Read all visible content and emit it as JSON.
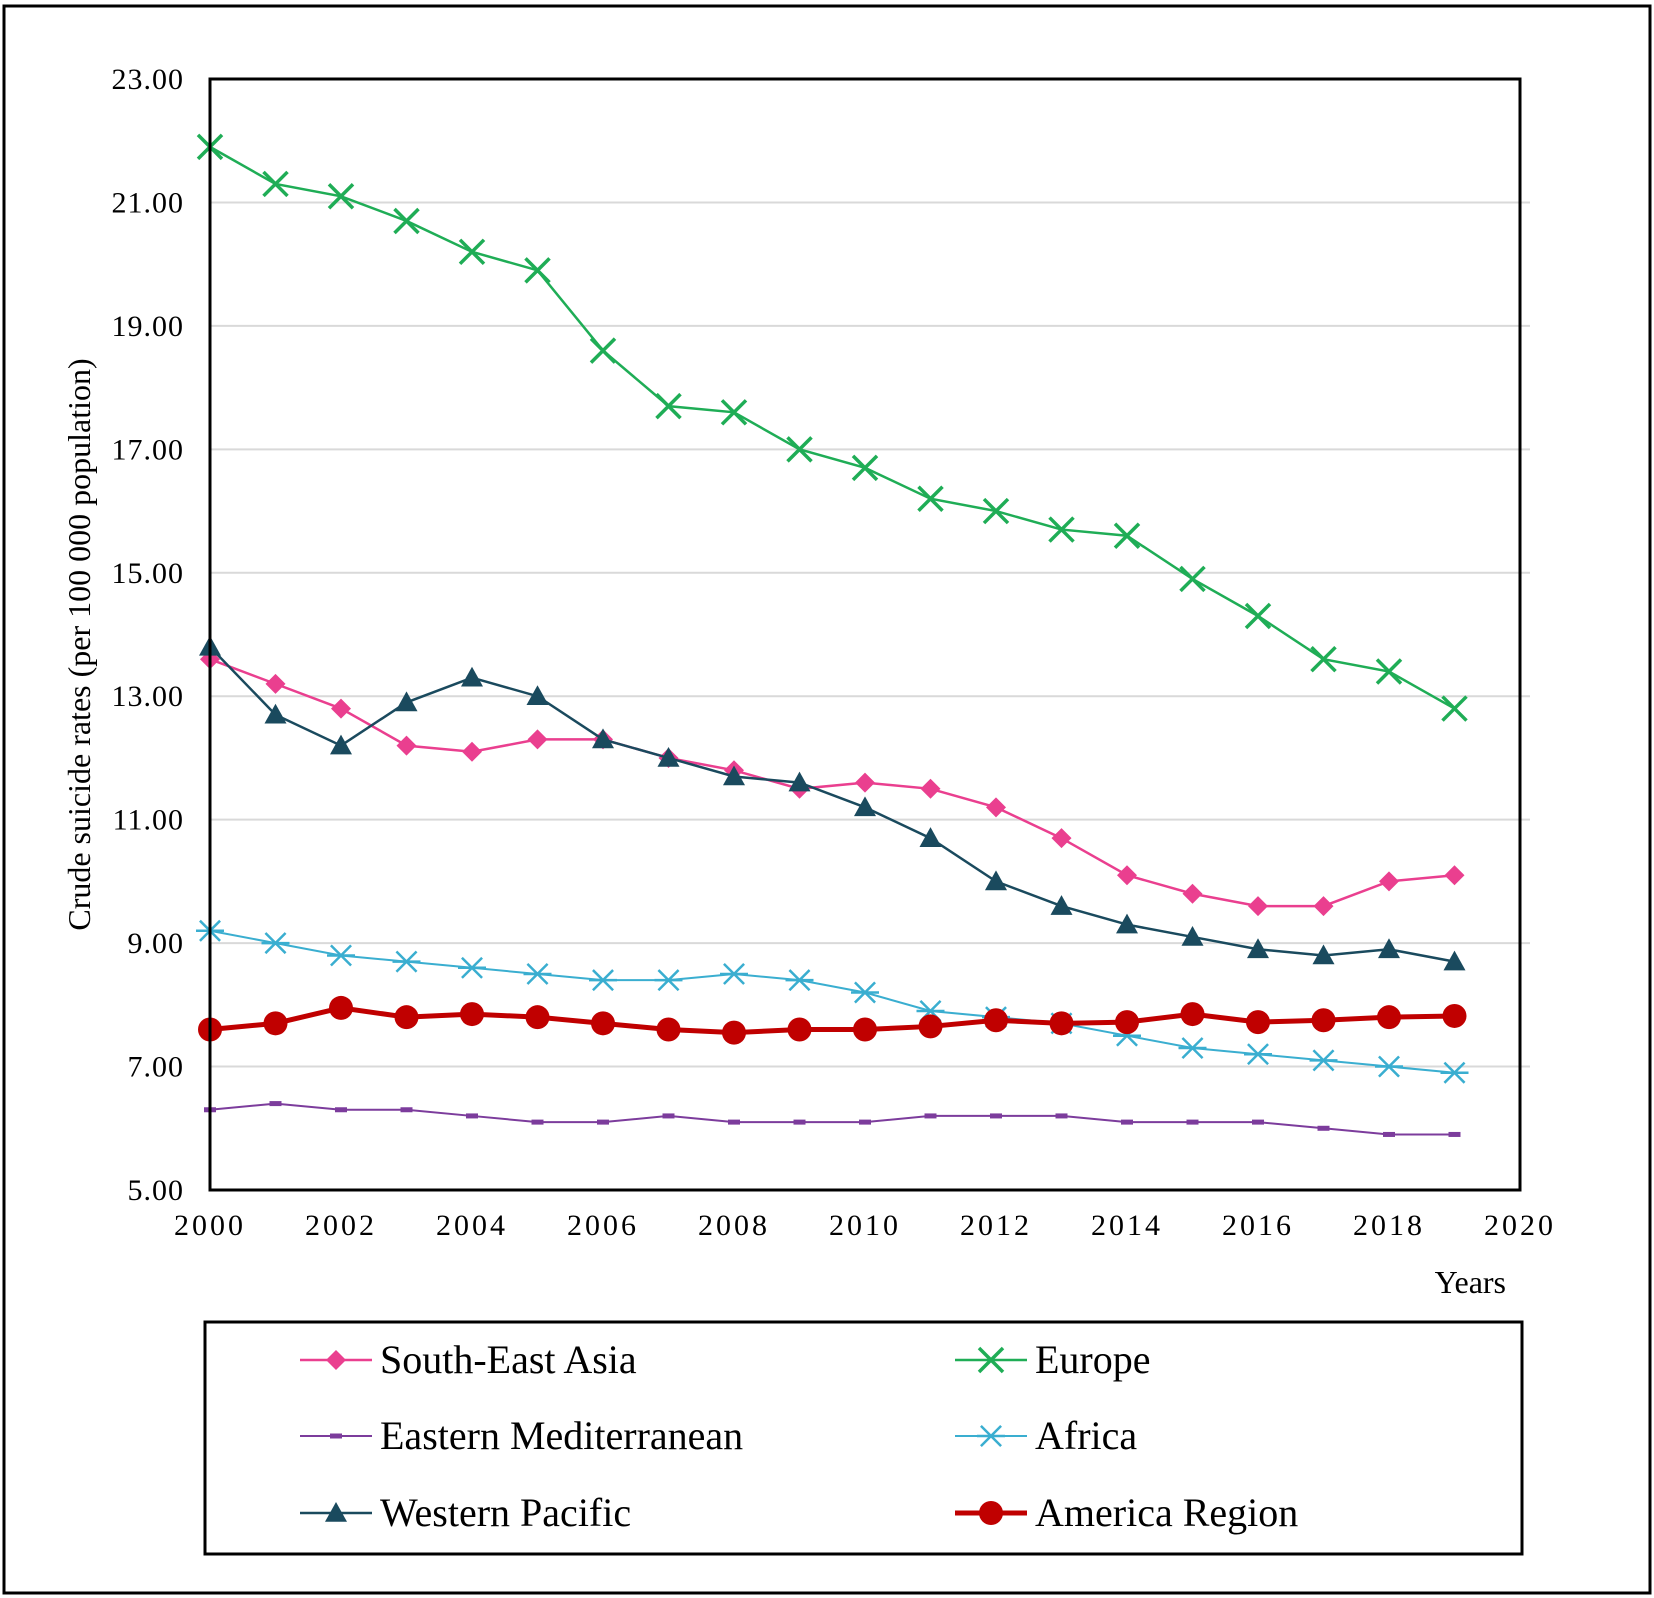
{
  "chart_data": {
    "type": "line",
    "ylabel": "Crude suicide rates (per 100 000 population)",
    "xlabel": "Years",
    "xlim": [
      2000,
      2020
    ],
    "ylim": [
      5.0,
      23.0
    ],
    "x_ticks": [
      "2000",
      "2002",
      "2004",
      "2006",
      "2008",
      "2010",
      "2012",
      "2014",
      "2016",
      "2018",
      "2020"
    ],
    "y_ticks": [
      "5.00",
      "7.00",
      "9.00",
      "11.00",
      "13.00",
      "15.00",
      "17.00",
      "19.00",
      "21.00",
      "23.00"
    ],
    "grid": "horizontal",
    "legend_position": "bottom",
    "x": [
      2000,
      2001,
      2002,
      2003,
      2004,
      2005,
      2006,
      2007,
      2008,
      2009,
      2010,
      2011,
      2012,
      2013,
      2014,
      2015,
      2016,
      2017,
      2018,
      2019
    ],
    "series": [
      {
        "name": "South-East Asia",
        "color": "#ea3f8f",
        "marker": "diamond",
        "values": [
          13.6,
          13.2,
          12.8,
          12.2,
          12.1,
          12.3,
          12.3,
          12.0,
          11.8,
          11.5,
          11.6,
          11.5,
          11.2,
          10.7,
          10.1,
          9.8,
          9.6,
          9.6,
          10.0,
          10.1
        ]
      },
      {
        "name": "Europe",
        "color": "#1fad56",
        "marker": "x",
        "values": [
          21.9,
          21.3,
          21.1,
          20.7,
          20.2,
          19.9,
          18.6,
          17.7,
          17.6,
          17.0,
          16.7,
          16.2,
          16.0,
          15.7,
          15.6,
          14.9,
          14.3,
          13.6,
          13.4,
          12.8
        ]
      },
      {
        "name": "Eastern Mediterranean",
        "color": "#7c3c9c",
        "marker": "dash",
        "values": [
          6.3,
          6.4,
          6.3,
          6.3,
          6.2,
          6.1,
          6.1,
          6.2,
          6.1,
          6.1,
          6.1,
          6.2,
          6.2,
          6.2,
          6.1,
          6.1,
          6.1,
          6.0,
          5.9,
          5.9
        ]
      },
      {
        "name": "Africa",
        "color": "#3aaed0",
        "marker": "asterisk",
        "values": [
          9.2,
          9.0,
          8.8,
          8.7,
          8.6,
          8.5,
          8.4,
          8.4,
          8.5,
          8.4,
          8.2,
          7.9,
          7.8,
          7.7,
          7.5,
          7.3,
          7.2,
          7.1,
          7.0,
          6.9
        ]
      },
      {
        "name": "Western Pacific",
        "color": "#1a4a5e",
        "marker": "triangle",
        "values": [
          13.8,
          12.7,
          12.2,
          12.9,
          13.3,
          13.0,
          12.3,
          12.0,
          11.7,
          11.6,
          11.2,
          10.7,
          10.0,
          9.6,
          9.3,
          9.1,
          8.9,
          8.8,
          8.9,
          8.7
        ]
      },
      {
        "name": "America Region",
        "color": "#c00000",
        "marker": "circle",
        "values": [
          7.6,
          7.7,
          7.95,
          7.8,
          7.85,
          7.8,
          7.7,
          7.6,
          7.55,
          7.6,
          7.6,
          7.65,
          7.75,
          7.7,
          7.72,
          7.85,
          7.72,
          7.75,
          7.8,
          7.82
        ]
      }
    ]
  }
}
